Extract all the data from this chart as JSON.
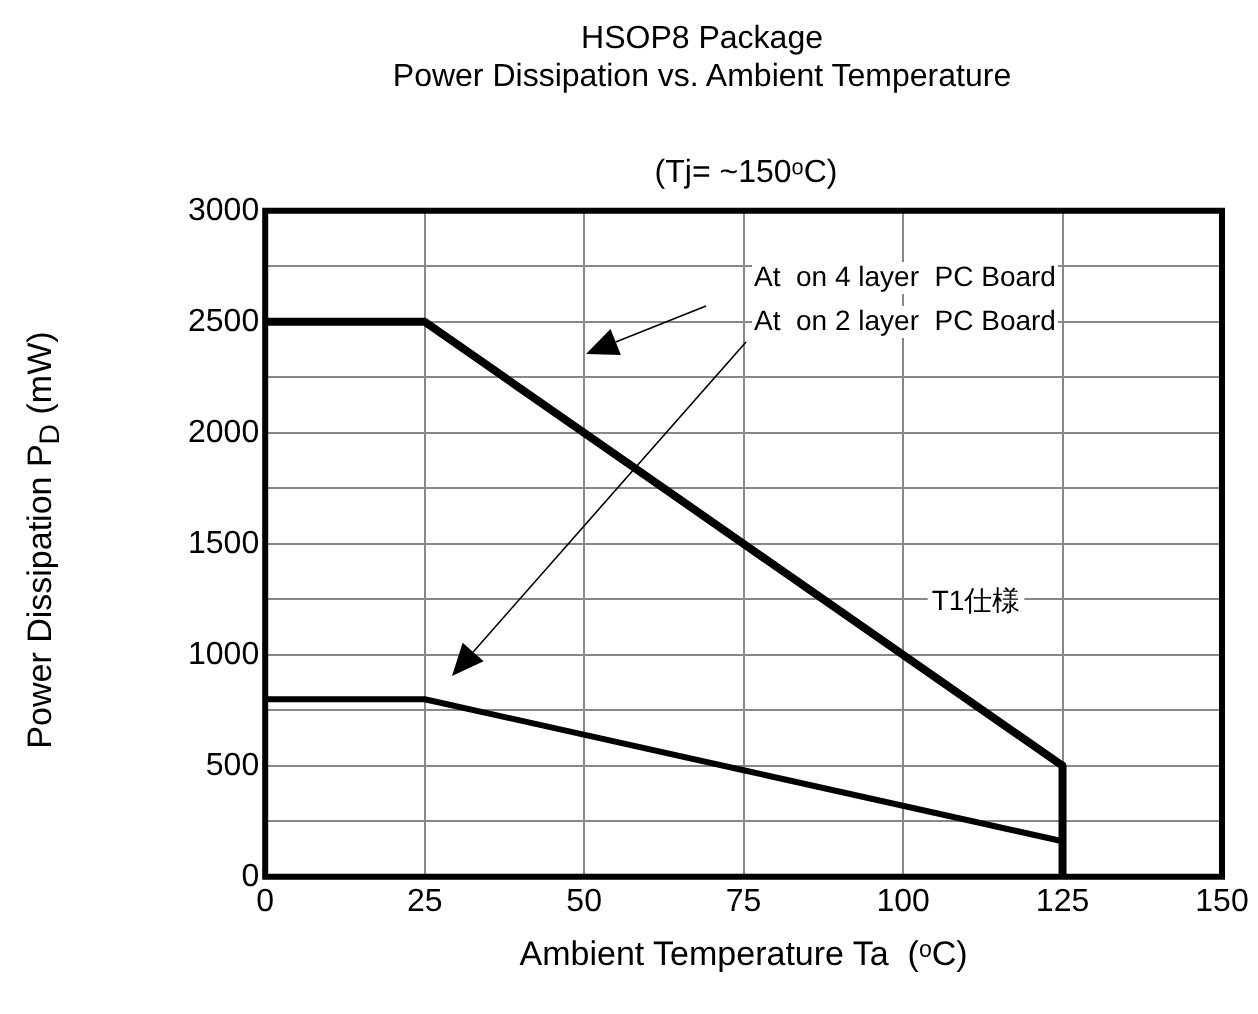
{
  "chart_data": {
    "type": "line",
    "title": "HSOP8 Package\nPower Dissipation vs. Ambient Temperature",
    "subtitle": "(Tj= ~150ᵒC)",
    "xlabel": "Ambient Temperature Ta  (ᵒC)",
    "ylabel": "Power Dissipation P$_{D}$  (mW)",
    "series": [
      {
        "color": "#000000",
        "x": [
          0,
          25,
          125,
          125
        ],
        "values": [
          2500,
          2500,
          500,
          0
        ]
      },
      {
        "color": "#000000",
        "x": [
          0,
          25,
          75,
          125,
          125
        ],
        "values": [
          800,
          800,
          480,
          160,
          0
        ]
      }
    ],
    "annotations": [
      "At  on 4 layer  PC Board",
      "At  on 2 layer  PC Board",
      "T1仕様"
    ],
    "xlim": [
      0,
      150
    ],
    "xticks": [
      0,
      25,
      50,
      75,
      100,
      125,
      150
    ],
    "ylim": [
      0,
      3000
    ],
    "yticks": [
      0,
      {
        "value": 250,
        "label": null
      },
      500,
      {
        "value": 750,
        "label": null
      },
      1000,
      {
        "value": 1250,
        "label": null
      },
      1500,
      {
        "value": 1750,
        "label": null
      },
      2000,
      {
        "value": 2250,
        "label": null
      },
      2500,
      {
        "value": 2750,
        "label": null
      },
      3000
    ],
    "grid": true,
    "legend": false,
    "marker": "none",
    "line_style": "solid"
  }
}
